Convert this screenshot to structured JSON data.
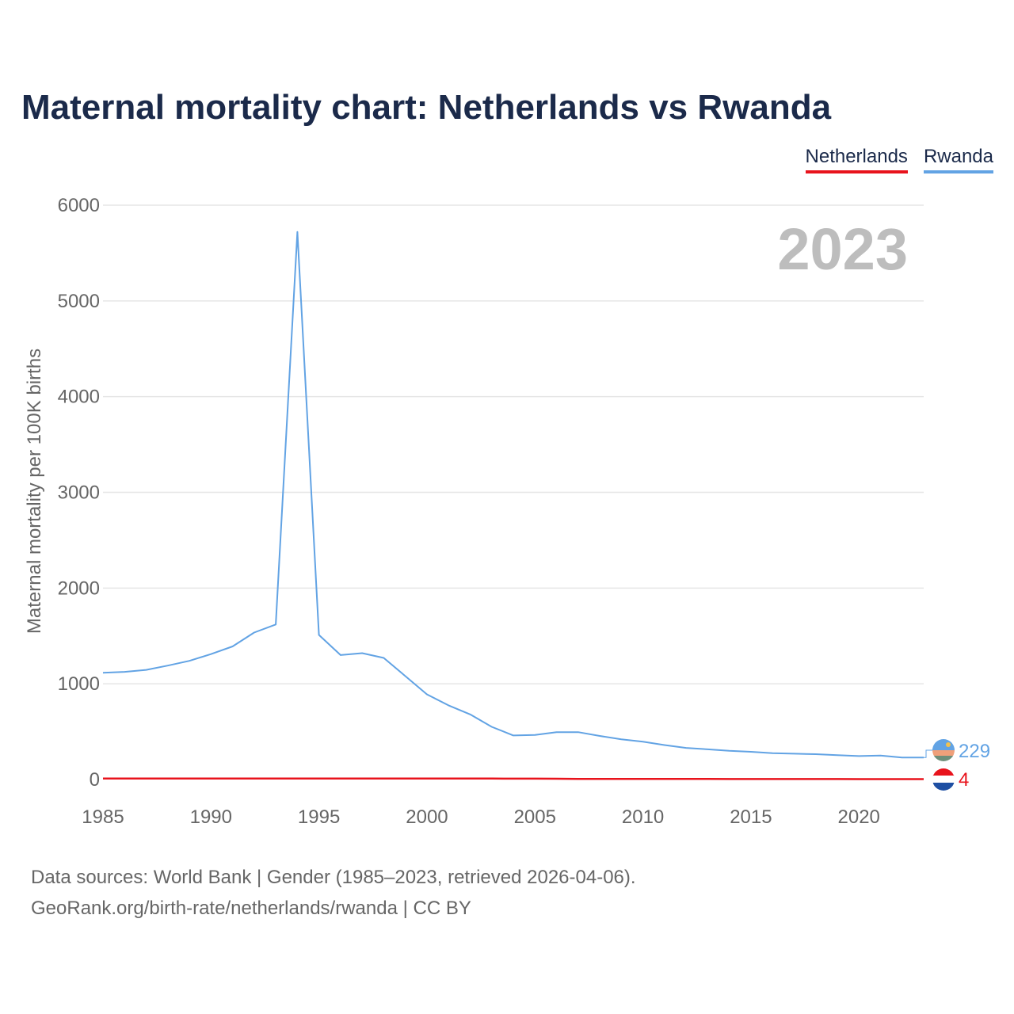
{
  "title": "Maternal mortality chart: Netherlands vs Rwanda",
  "colors": {
    "title": "#1b2a4a",
    "netherlands": "#e8131c",
    "rwanda": "#62a3e4",
    "grid": "#e6e6e6",
    "axis_text": "#666666",
    "year_watermark": "#bdbdbd"
  },
  "legend": [
    {
      "name": "Netherlands",
      "color": "#e8131c"
    },
    {
      "name": "Rwanda",
      "color": "#62a3e4"
    }
  ],
  "year_label": "2023",
  "end_labels": {
    "rwanda": "229",
    "netherlands": "4"
  },
  "icons": {
    "rwanda": "rwanda-flag-icon",
    "netherlands": "netherlands-flag-icon"
  },
  "footer": {
    "line1": "Data sources: World Bank | Gender (1985–2023, retrieved 2026-04-06).",
    "line2": "GeoRank.org/birth-rate/netherlands/rwanda | CC BY"
  },
  "chart_data": {
    "type": "line",
    "title": "Maternal mortality chart: Netherlands vs Rwanda",
    "xlabel": "",
    "ylabel": "Maternal mortality per 100K births",
    "x": [
      1985,
      1986,
      1987,
      1988,
      1989,
      1990,
      1991,
      1992,
      1993,
      1994,
      1995,
      1996,
      1997,
      1998,
      1999,
      2000,
      2001,
      2002,
      2003,
      2004,
      2005,
      2006,
      2007,
      2008,
      2009,
      2010,
      2011,
      2012,
      2013,
      2014,
      2015,
      2016,
      2017,
      2018,
      2019,
      2020,
      2021,
      2022,
      2023
    ],
    "series": [
      {
        "name": "Netherlands",
        "color": "#e8131c",
        "values": [
          10,
          10,
          10,
          10,
          10,
          10,
          10,
          10,
          10,
          10,
          10,
          10,
          10,
          10,
          10,
          10,
          10,
          10,
          10,
          9,
          9,
          8,
          7,
          7,
          6,
          6,
          6,
          6,
          6,
          5,
          5,
          5,
          5,
          5,
          5,
          4,
          4,
          4,
          4
        ]
      },
      {
        "name": "Rwanda",
        "color": "#62a3e4",
        "values": [
          1115,
          1125,
          1145,
          1190,
          1240,
          1310,
          1390,
          1535,
          1620,
          5720,
          1510,
          1300,
          1320,
          1270,
          1080,
          890,
          775,
          680,
          550,
          460,
          465,
          495,
          495,
          455,
          420,
          395,
          360,
          330,
          315,
          300,
          290,
          275,
          270,
          265,
          255,
          245,
          250,
          230,
          229
        ]
      }
    ],
    "xlim": [
      1985,
      2023
    ],
    "ylim": [
      0,
      6000
    ],
    "xticks": [
      1985,
      1990,
      1995,
      2000,
      2005,
      2010,
      2015,
      2020
    ],
    "yticks": [
      0,
      1000,
      2000,
      3000,
      4000,
      5000,
      6000
    ],
    "grid": true,
    "legend_position": "top-right"
  }
}
